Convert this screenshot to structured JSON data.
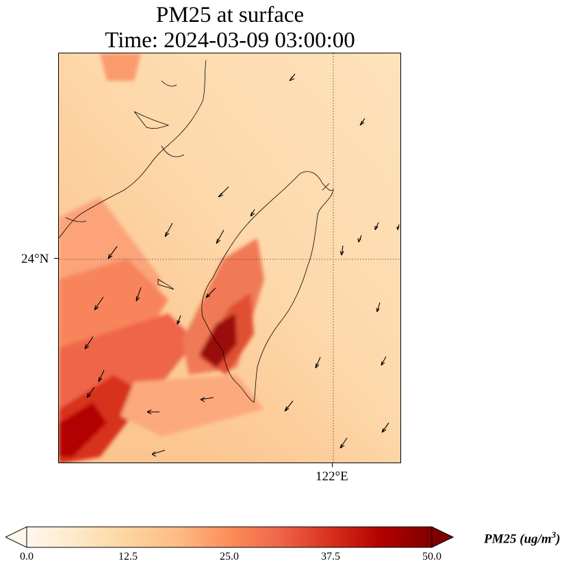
{
  "title": {
    "line1": "PM25 at surface",
    "line2": "Time: 2024-03-09 03:00:00"
  },
  "map": {
    "lat_gridline_label": "24°N",
    "lon_gridline_label": "122°E",
    "variable": "PM25",
    "units": "ug/m3",
    "overlays": [
      "coastlines",
      "wind-vectors",
      "dotted-gridlines"
    ]
  },
  "colorbar": {
    "label": "PM25 (ug/m",
    "label_exp": "3",
    "label_close": ")",
    "ticks": [
      "0.0",
      "12.5",
      "25.0",
      "37.5",
      "50.0"
    ],
    "min": 0,
    "max": 50,
    "extend": "both",
    "colormap": "OrRd",
    "colors": [
      "#fff7ec",
      "#fee8c8",
      "#fdd49e",
      "#fdbb84",
      "#fc8d59",
      "#ef6548",
      "#d7301f",
      "#b30000",
      "#7f0000"
    ]
  }
}
